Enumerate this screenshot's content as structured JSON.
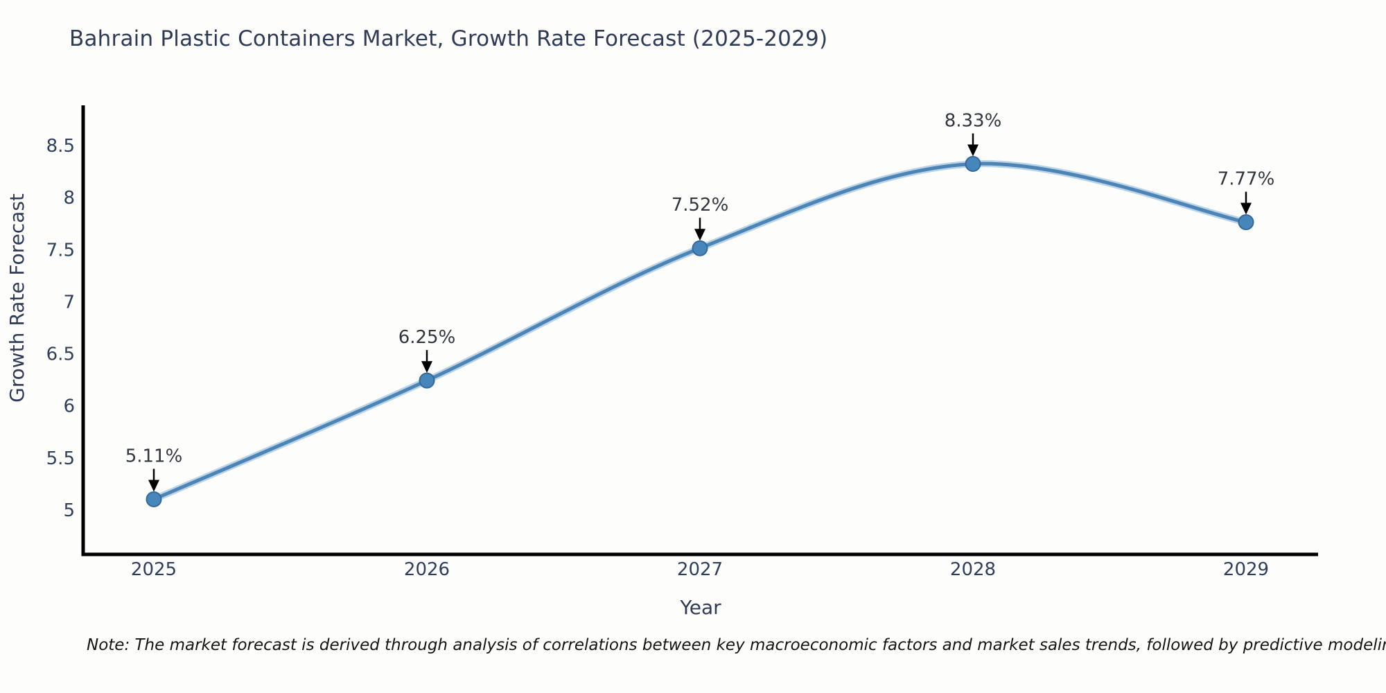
{
  "chart_data": {
    "type": "line",
    "title": "Bahrain Plastic Containers Market, Growth Rate Forecast (2025-2029)",
    "xlabel": "Year",
    "ylabel": "Growth Rate Forecast",
    "categories": [
      "2025",
      "2026",
      "2027",
      "2028",
      "2029"
    ],
    "values": [
      5.11,
      6.25,
      7.52,
      8.33,
      7.77
    ],
    "point_labels": [
      "5.11%",
      "6.25%",
      "7.52%",
      "8.33%",
      "7.77%"
    ],
    "yticks": [
      5,
      5.5,
      6,
      6.5,
      7,
      7.5,
      8,
      8.5
    ],
    "ylim": [
      4.55,
      8.9
    ],
    "xlim": [
      "2025",
      "2029"
    ],
    "grid": false,
    "legend_position": "none",
    "line_color": "#4b84b5",
    "line_halo_color": "#bad4e7",
    "marker_color": "#4686ba",
    "marker_edge_color": "#35699c",
    "arrow_color": "#000000",
    "spine_color": "#000000"
  },
  "note": "Note: The market forecast is derived through analysis of correlations between key macroeconomic factors and market sales trends, followed by predictive modeling to project future sales",
  "colors": {
    "title_text": "#2f3b56",
    "axis_text": "#2e3f5c",
    "annotation_text": "#2f3640",
    "background": "#fdfdfb"
  }
}
